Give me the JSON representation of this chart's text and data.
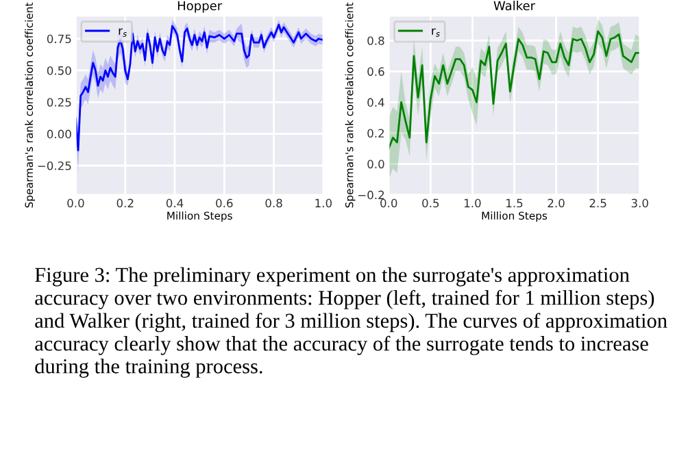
{
  "chart_data": [
    {
      "type": "line",
      "title": "Hopper",
      "xlabel": "Million Steps",
      "ylabel": "Spearman's rank correlation coefficient",
      "xlim": [
        0,
        1
      ],
      "ylim": [
        -0.48,
        0.93
      ],
      "xticks": [
        {
          "value": 0,
          "label": "0.0"
        },
        0.2,
        0.4,
        0.6,
        0.8,
        {
          "value": 1,
          "label": "1.0"
        }
      ],
      "yticks": [
        {
          "value": -0.25,
          "label": "−0.25"
        },
        {
          "value": 0,
          "label": "0.00"
        },
        {
          "value": 0.25,
          "label": "0.25"
        },
        {
          "value": 0.5,
          "label": "0.50"
        },
        {
          "value": 0.75,
          "label": "0.75"
        }
      ],
      "grid": true,
      "legend": "top left",
      "line_style": "solid",
      "marker": "none",
      "series": [
        {
          "name": "r$_{s}$",
          "color": "#0000ff",
          "x": [
            0.0,
            0.01,
            0.02,
            0.03,
            0.04,
            0.05,
            0.06,
            0.07,
            0.08,
            0.09,
            0.1,
            0.11,
            0.12,
            0.13,
            0.14,
            0.15,
            0.16,
            0.17,
            0.18,
            0.19,
            0.2,
            0.21,
            0.22,
            0.23,
            0.24,
            0.25,
            0.26,
            0.27,
            0.28,
            0.29,
            0.3,
            0.31,
            0.32,
            0.33,
            0.34,
            0.35,
            0.36,
            0.37,
            0.38,
            0.39,
            0.4,
            0.41,
            0.42,
            0.43,
            0.44,
            0.45,
            0.46,
            0.47,
            0.48,
            0.49,
            0.5,
            0.51,
            0.52,
            0.53,
            0.54,
            0.56,
            0.58,
            0.6,
            0.62,
            0.64,
            0.65,
            0.67,
            0.68,
            0.69,
            0.7,
            0.71,
            0.72,
            0.74,
            0.75,
            0.76,
            0.77,
            0.79,
            0.8,
            0.82,
            0.83,
            0.84,
            0.86,
            0.88,
            0.9,
            0.91,
            0.93,
            0.95,
            0.97,
            0.98,
            1.0
          ],
          "values": [
            0.12,
            -0.13,
            0.3,
            0.33,
            0.37,
            0.33,
            0.45,
            0.56,
            0.5,
            0.38,
            0.45,
            0.42,
            0.5,
            0.45,
            0.52,
            0.48,
            0.45,
            0.68,
            0.74,
            0.67,
            0.5,
            0.43,
            0.55,
            0.79,
            0.65,
            0.73,
            0.67,
            0.71,
            0.58,
            0.79,
            0.7,
            0.56,
            0.76,
            0.65,
            0.75,
            0.66,
            0.62,
            0.73,
            0.7,
            0.85,
            0.82,
            0.78,
            0.66,
            0.57,
            0.8,
            0.83,
            0.75,
            0.7,
            0.78,
            0.7,
            0.76,
            0.73,
            0.8,
            0.68,
            0.77,
            0.76,
            0.78,
            0.75,
            0.78,
            0.73,
            0.79,
            0.79,
            0.66,
            0.6,
            0.62,
            0.78,
            0.72,
            0.72,
            0.78,
            0.68,
            0.73,
            0.8,
            0.76,
            0.86,
            0.8,
            0.84,
            0.78,
            0.72,
            0.8,
            0.75,
            0.79,
            0.75,
            0.73,
            0.75,
            0.74
          ],
          "lower": [
            0.0,
            -0.3,
            0.2,
            0.23,
            0.27,
            0.23,
            0.35,
            0.46,
            0.4,
            0.28,
            0.35,
            0.32,
            0.4,
            0.35,
            0.42,
            0.38,
            0.35,
            0.58,
            0.64,
            0.57,
            0.4,
            0.38,
            0.5,
            0.74,
            0.6,
            0.68,
            0.62,
            0.66,
            0.53,
            0.74,
            0.65,
            0.51,
            0.71,
            0.6,
            0.7,
            0.61,
            0.57,
            0.68,
            0.65,
            0.8,
            0.77,
            0.73,
            0.61,
            0.52,
            0.75,
            0.78,
            0.7,
            0.65,
            0.73,
            0.65,
            0.71,
            0.68,
            0.75,
            0.63,
            0.72,
            0.72,
            0.74,
            0.71,
            0.74,
            0.69,
            0.75,
            0.71,
            0.58,
            0.52,
            0.54,
            0.74,
            0.68,
            0.68,
            0.74,
            0.64,
            0.69,
            0.76,
            0.72,
            0.82,
            0.76,
            0.8,
            0.74,
            0.68,
            0.76,
            0.71,
            0.75,
            0.71,
            0.69,
            0.71,
            0.7
          ],
          "upper": [
            0.2,
            0.05,
            0.4,
            0.43,
            0.47,
            0.43,
            0.55,
            0.66,
            0.6,
            0.48,
            0.55,
            0.52,
            0.6,
            0.55,
            0.62,
            0.58,
            0.55,
            0.78,
            0.84,
            0.77,
            0.6,
            0.48,
            0.6,
            0.84,
            0.7,
            0.78,
            0.72,
            0.76,
            0.63,
            0.84,
            0.75,
            0.61,
            0.81,
            0.7,
            0.8,
            0.71,
            0.67,
            0.78,
            0.75,
            0.9,
            0.87,
            0.83,
            0.71,
            0.62,
            0.85,
            0.88,
            0.8,
            0.75,
            0.83,
            0.75,
            0.81,
            0.78,
            0.85,
            0.73,
            0.82,
            0.8,
            0.82,
            0.79,
            0.82,
            0.77,
            0.83,
            0.87,
            0.74,
            0.68,
            0.7,
            0.82,
            0.76,
            0.76,
            0.82,
            0.72,
            0.77,
            0.84,
            0.8,
            0.9,
            0.84,
            0.88,
            0.82,
            0.76,
            0.84,
            0.79,
            0.83,
            0.79,
            0.77,
            0.79,
            0.78
          ]
        }
      ]
    },
    {
      "type": "line",
      "title": "Walker",
      "xlabel": "Million Steps",
      "ylabel": "Spearman's rank correlation coefficient",
      "xlim": [
        0,
        3
      ],
      "ylim": [
        -0.2,
        0.96
      ],
      "xticks": [
        {
          "value": 0,
          "label": "0.0"
        },
        0.5,
        {
          "value": 1,
          "label": "1.0"
        },
        1.5,
        {
          "value": 2,
          "label": "2.0"
        },
        2.5,
        {
          "value": 3,
          "label": "3.0"
        }
      ],
      "yticks": [
        {
          "value": -0.2,
          "label": "−0.2"
        },
        {
          "value": 0,
          "label": "0.0"
        },
        0.2,
        0.4,
        0.6,
        0.8
      ],
      "grid": true,
      "legend": "top left",
      "line_style": "solid",
      "marker": "none",
      "annotations": [
        "Figure 3: The preliminary experiment on the surrogate's approximation accuracy over two environments: Hopper (left, trained for 1 million steps) and Walker (right, trained for 3 million steps). The curves of approximation accuracy clearly show that the accuracy of the surrogate tends to increase during the training process."
      ],
      "series": [
        {
          "name": "r$_{s}$",
          "color": "#008000",
          "x": [
            0.0,
            0.05,
            0.1,
            0.15,
            0.2,
            0.25,
            0.3,
            0.35,
            0.4,
            0.45,
            0.5,
            0.55,
            0.6,
            0.65,
            0.7,
            0.75,
            0.8,
            0.85,
            0.9,
            0.95,
            1.0,
            1.05,
            1.1,
            1.15,
            1.2,
            1.25,
            1.3,
            1.35,
            1.4,
            1.45,
            1.5,
            1.55,
            1.6,
            1.65,
            1.7,
            1.75,
            1.8,
            1.85,
            1.9,
            1.95,
            2.0,
            2.05,
            2.1,
            2.15,
            2.2,
            2.25,
            2.3,
            2.35,
            2.4,
            2.45,
            2.5,
            2.55,
            2.6,
            2.65,
            2.7,
            2.75,
            2.8,
            2.85,
            2.9,
            2.95,
            3.0
          ],
          "values": [
            0.1,
            0.17,
            0.14,
            0.4,
            0.28,
            0.17,
            0.7,
            0.43,
            0.64,
            0.14,
            0.42,
            0.57,
            0.52,
            0.64,
            0.52,
            0.6,
            0.68,
            0.68,
            0.64,
            0.5,
            0.48,
            0.4,
            0.67,
            0.64,
            0.76,
            0.39,
            0.67,
            0.72,
            0.78,
            0.47,
            0.65,
            0.81,
            0.77,
            0.69,
            0.69,
            0.68,
            0.55,
            0.73,
            0.72,
            0.66,
            0.66,
            0.78,
            0.69,
            0.64,
            0.81,
            0.8,
            0.81,
            0.75,
            0.66,
            0.71,
            0.86,
            0.82,
            0.7,
            0.81,
            0.82,
            0.84,
            0.7,
            0.68,
            0.66,
            0.72,
            0.72
          ],
          "lower": [
            -0.1,
            -0.03,
            -0.06,
            0.2,
            0.16,
            0.05,
            0.58,
            0.31,
            0.52,
            0.02,
            0.3,
            0.49,
            0.44,
            0.56,
            0.44,
            0.52,
            0.6,
            0.6,
            0.56,
            0.42,
            0.33,
            0.25,
            0.59,
            0.56,
            0.68,
            0.31,
            0.59,
            0.64,
            0.7,
            0.39,
            0.57,
            0.73,
            0.69,
            0.61,
            0.61,
            0.6,
            0.47,
            0.65,
            0.64,
            0.58,
            0.58,
            0.7,
            0.61,
            0.56,
            0.73,
            0.72,
            0.73,
            0.67,
            0.58,
            0.63,
            0.78,
            0.74,
            0.62,
            0.73,
            0.74,
            0.76,
            0.62,
            0.6,
            0.58,
            0.62,
            0.62
          ],
          "upper": [
            0.3,
            0.37,
            0.34,
            0.6,
            0.4,
            0.29,
            0.82,
            0.55,
            0.76,
            0.26,
            0.54,
            0.65,
            0.6,
            0.72,
            0.6,
            0.68,
            0.76,
            0.76,
            0.72,
            0.58,
            0.63,
            0.55,
            0.75,
            0.72,
            0.84,
            0.47,
            0.75,
            0.8,
            0.86,
            0.55,
            0.73,
            0.89,
            0.85,
            0.77,
            0.77,
            0.76,
            0.63,
            0.81,
            0.8,
            0.74,
            0.74,
            0.86,
            0.77,
            0.72,
            0.89,
            0.88,
            0.89,
            0.83,
            0.74,
            0.79,
            0.94,
            0.9,
            0.78,
            0.89,
            0.9,
            0.92,
            0.78,
            0.76,
            0.74,
            0.84,
            0.82
          ]
        }
      ]
    }
  ]
}
